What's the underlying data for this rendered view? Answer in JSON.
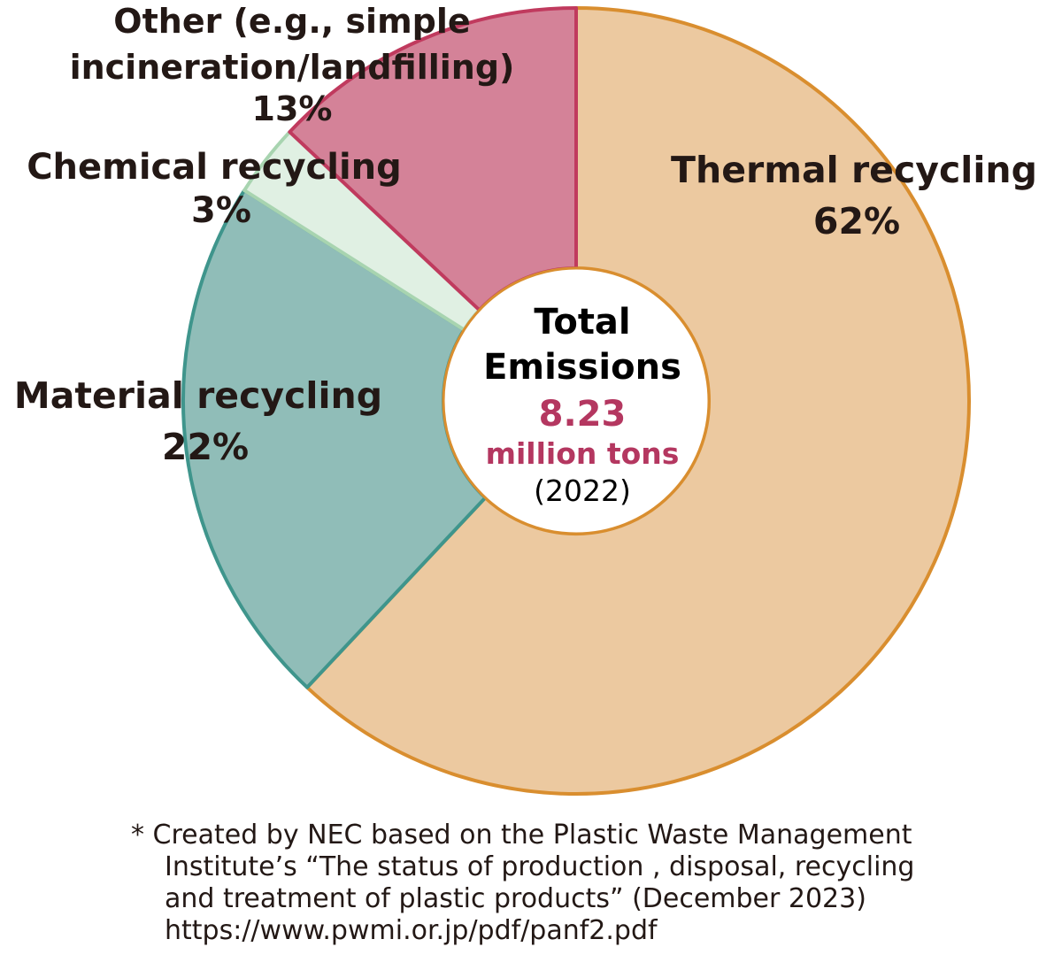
{
  "chart_data": {
    "type": "pie",
    "variant": "donut",
    "slices": [
      {
        "label": "Thermal recycling",
        "value": 62,
        "value_label": "62%",
        "fill": "#ECC9A0",
        "stroke": "#D98E2F"
      },
      {
        "label": "Material recycling",
        "value": 22,
        "value_label": "22%",
        "fill": "#90BDB8",
        "stroke": "#3F958C"
      },
      {
        "label": "Chemical recycling",
        "value": 3,
        "value_label": "3%",
        "fill": "#E0F0E3",
        "stroke": "#A8D4B0"
      },
      {
        "label_lines": [
          "Other (e.g., simple",
          "incineration/landfilling)"
        ],
        "value": 13,
        "value_label": "13%",
        "fill": "#D48298",
        "stroke": "#C03A5E"
      }
    ],
    "start_angle_deg": 0,
    "direction": "clockwise",
    "center": {
      "title_lines": [
        "Total",
        "Emissions"
      ],
      "value": "8.23",
      "unit": "million tons",
      "year": "(2022)",
      "accent_color": "#B43760"
    }
  },
  "footnote": {
    "lines": [
      "* Created by NEC based on the Plastic Waste Management",
      "Institute’s “The status of production , disposal, recycling",
      "and treatment of plastic products” (December 2023)",
      "https://www.pwmi.or.jp/pdf/panf2.pdf"
    ]
  }
}
